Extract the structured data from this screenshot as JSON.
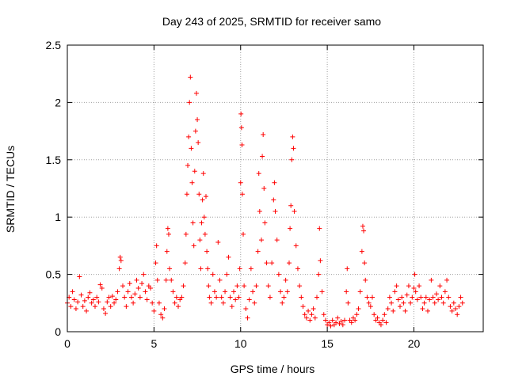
{
  "chart_data": {
    "type": "scatter",
    "title": "Day 243 of 2025, SRMTID for receiver samo",
    "xlabel": "GPS time / hours",
    "ylabel": "SRMTID / TECUs",
    "xlim": [
      0,
      24
    ],
    "ylim": [
      0,
      2.5
    ],
    "xticks": [
      0,
      5,
      10,
      15,
      20
    ],
    "xtick_labels": [
      "0",
      "5",
      "10",
      "15",
      "20"
    ],
    "yticks": [
      0,
      0.5,
      1,
      1.5,
      2,
      2.5
    ],
    "ytick_labels": [
      "0",
      "0.5",
      "1",
      "1.5",
      "2",
      "2.5"
    ],
    "grid": true,
    "marker": "+",
    "marker_color": "#ff0000",
    "series": [
      {
        "name": "samo",
        "points": [
          [
            0.0,
            0.25
          ],
          [
            0.1,
            0.3
          ],
          [
            0.2,
            0.22
          ],
          [
            0.3,
            0.35
          ],
          [
            0.4,
            0.28
          ],
          [
            0.5,
            0.2
          ],
          [
            0.6,
            0.26
          ],
          [
            0.7,
            0.48
          ],
          [
            0.8,
            0.32
          ],
          [
            0.9,
            0.22
          ],
          [
            1.0,
            0.27
          ],
          [
            1.1,
            0.18
          ],
          [
            1.2,
            0.3
          ],
          [
            1.3,
            0.34
          ],
          [
            1.4,
            0.25
          ],
          [
            1.5,
            0.28
          ],
          [
            1.6,
            0.22
          ],
          [
            1.7,
            0.3
          ],
          [
            1.8,
            0.26
          ],
          [
            1.9,
            0.41
          ],
          [
            2.0,
            0.38
          ],
          [
            2.1,
            0.2
          ],
          [
            2.2,
            0.16
          ],
          [
            2.3,
            0.26
          ],
          [
            2.4,
            0.3
          ],
          [
            2.5,
            0.22
          ],
          [
            2.6,
            0.31
          ],
          [
            2.7,
            0.25
          ],
          [
            2.8,
            0.28
          ],
          [
            2.9,
            0.35
          ],
          [
            3.0,
            0.55
          ],
          [
            3.05,
            0.65
          ],
          [
            3.1,
            0.62
          ],
          [
            3.2,
            0.4
          ],
          [
            3.3,
            0.3
          ],
          [
            3.4,
            0.22
          ],
          [
            3.5,
            0.35
          ],
          [
            3.6,
            0.42
          ],
          [
            3.7,
            0.3
          ],
          [
            3.8,
            0.25
          ],
          [
            3.9,
            0.33
          ],
          [
            4.0,
            0.45
          ],
          [
            4.1,
            0.38
          ],
          [
            4.2,
            0.3
          ],
          [
            4.3,
            0.42
          ],
          [
            4.4,
            0.5
          ],
          [
            4.5,
            0.35
          ],
          [
            4.6,
            0.28
          ],
          [
            4.7,
            0.4
          ],
          [
            4.8,
            0.38
          ],
          [
            4.9,
            0.25
          ],
          [
            5.0,
            0.18
          ],
          [
            5.1,
            0.6
          ],
          [
            5.15,
            0.75
          ],
          [
            5.2,
            0.45
          ],
          [
            5.3,
            0.25
          ],
          [
            5.4,
            0.15
          ],
          [
            5.5,
            0.12
          ],
          [
            5.6,
            0.2
          ],
          [
            5.7,
            0.45
          ],
          [
            5.75,
            0.7
          ],
          [
            5.8,
            0.9
          ],
          [
            5.85,
            0.85
          ],
          [
            5.9,
            0.55
          ],
          [
            6.0,
            0.45
          ],
          [
            6.1,
            0.35
          ],
          [
            6.2,
            0.25
          ],
          [
            6.3,
            0.3
          ],
          [
            6.4,
            0.22
          ],
          [
            6.5,
            0.28
          ],
          [
            6.6,
            0.3
          ],
          [
            6.7,
            0.4
          ],
          [
            6.8,
            0.6
          ],
          [
            6.85,
            0.85
          ],
          [
            6.9,
            1.2
          ],
          [
            6.95,
            1.45
          ],
          [
            7.0,
            1.7
          ],
          [
            7.05,
            2.0
          ],
          [
            7.1,
            2.22
          ],
          [
            7.15,
            1.6
          ],
          [
            7.2,
            1.3
          ],
          [
            7.25,
            0.95
          ],
          [
            7.3,
            0.75
          ],
          [
            7.35,
            1.4
          ],
          [
            7.4,
            1.75
          ],
          [
            7.45,
            2.08
          ],
          [
            7.5,
            1.85
          ],
          [
            7.55,
            1.65
          ],
          [
            7.6,
            1.2
          ],
          [
            7.65,
            0.8
          ],
          [
            7.7,
            0.55
          ],
          [
            7.75,
            0.95
          ],
          [
            7.8,
            1.15
          ],
          [
            7.85,
            1.38
          ],
          [
            7.9,
            1.0
          ],
          [
            7.95,
            0.85
          ],
          [
            8.0,
            1.18
          ],
          [
            8.05,
            0.7
          ],
          [
            8.1,
            0.55
          ],
          [
            8.15,
            0.4
          ],
          [
            8.2,
            0.3
          ],
          [
            8.3,
            0.25
          ],
          [
            8.4,
            0.5
          ],
          [
            8.5,
            0.35
          ],
          [
            8.6,
            0.3
          ],
          [
            8.7,
            0.78
          ],
          [
            8.8,
            0.45
          ],
          [
            8.9,
            0.3
          ],
          [
            9.0,
            0.25
          ],
          [
            9.1,
            0.35
          ],
          [
            9.2,
            0.5
          ],
          [
            9.3,
            0.65
          ],
          [
            9.4,
            0.3
          ],
          [
            9.5,
            0.22
          ],
          [
            9.6,
            0.35
          ],
          [
            9.7,
            0.28
          ],
          [
            9.8,
            0.4
          ],
          [
            9.9,
            0.3
          ],
          [
            9.95,
            0.55
          ],
          [
            10.0,
            1.3
          ],
          [
            10.02,
            1.9
          ],
          [
            10.05,
            1.78
          ],
          [
            10.08,
            1.63
          ],
          [
            10.1,
            1.2
          ],
          [
            10.15,
            0.85
          ],
          [
            10.2,
            0.4
          ],
          [
            10.3,
            0.2
          ],
          [
            10.4,
            0.12
          ],
          [
            10.5,
            0.28
          ],
          [
            10.6,
            0.55
          ],
          [
            10.7,
            0.35
          ],
          [
            10.8,
            0.25
          ],
          [
            10.9,
            0.4
          ],
          [
            11.0,
            0.7
          ],
          [
            11.05,
            1.38
          ],
          [
            11.1,
            1.05
          ],
          [
            11.2,
            0.8
          ],
          [
            11.25,
            1.53
          ],
          [
            11.3,
            1.72
          ],
          [
            11.35,
            1.25
          ],
          [
            11.4,
            0.95
          ],
          [
            11.5,
            0.6
          ],
          [
            11.6,
            0.4
          ],
          [
            11.7,
            0.3
          ],
          [
            11.8,
            0.6
          ],
          [
            11.9,
            1.15
          ],
          [
            11.95,
            1.3
          ],
          [
            12.0,
            1.05
          ],
          [
            12.1,
            0.8
          ],
          [
            12.2,
            0.5
          ],
          [
            12.3,
            0.35
          ],
          [
            12.4,
            0.25
          ],
          [
            12.5,
            0.3
          ],
          [
            12.6,
            0.45
          ],
          [
            12.7,
            0.35
          ],
          [
            12.8,
            0.6
          ],
          [
            12.85,
            0.9
          ],
          [
            12.9,
            1.1
          ],
          [
            12.95,
            1.5
          ],
          [
            13.0,
            1.7
          ],
          [
            13.05,
            1.6
          ],
          [
            13.1,
            1.05
          ],
          [
            13.2,
            0.75
          ],
          [
            13.3,
            0.55
          ],
          [
            13.4,
            0.4
          ],
          [
            13.5,
            0.3
          ],
          [
            13.6,
            0.22
          ],
          [
            13.7,
            0.15
          ],
          [
            13.8,
            0.12
          ],
          [
            13.9,
            0.18
          ],
          [
            14.0,
            0.1
          ],
          [
            14.1,
            0.15
          ],
          [
            14.2,
            0.2
          ],
          [
            14.3,
            0.12
          ],
          [
            14.4,
            0.3
          ],
          [
            14.5,
            0.5
          ],
          [
            14.55,
            0.9
          ],
          [
            14.6,
            0.62
          ],
          [
            14.7,
            0.35
          ],
          [
            14.8,
            0.15
          ],
          [
            14.9,
            0.1
          ],
          [
            15.0,
            0.06
          ],
          [
            15.1,
            0.08
          ],
          [
            15.2,
            0.05
          ],
          [
            15.3,
            0.1
          ],
          [
            15.4,
            0.06
          ],
          [
            15.5,
            0.08
          ],
          [
            15.6,
            0.12
          ],
          [
            15.7,
            0.07
          ],
          [
            15.8,
            0.09
          ],
          [
            15.9,
            0.06
          ],
          [
            16.0,
            0.1
          ],
          [
            16.1,
            0.35
          ],
          [
            16.15,
            0.55
          ],
          [
            16.2,
            0.25
          ],
          [
            16.3,
            0.1
          ],
          [
            16.4,
            0.08
          ],
          [
            16.5,
            0.12
          ],
          [
            16.6,
            0.1
          ],
          [
            16.7,
            0.15
          ],
          [
            16.8,
            0.2
          ],
          [
            16.9,
            0.35
          ],
          [
            17.0,
            0.7
          ],
          [
            17.05,
            0.92
          ],
          [
            17.1,
            0.88
          ],
          [
            17.15,
            0.6
          ],
          [
            17.2,
            0.45
          ],
          [
            17.3,
            0.3
          ],
          [
            17.4,
            0.25
          ],
          [
            17.5,
            0.22
          ],
          [
            17.6,
            0.3
          ],
          [
            17.7,
            0.15
          ],
          [
            17.8,
            0.1
          ],
          [
            17.9,
            0.12
          ],
          [
            18.0,
            0.08
          ],
          [
            18.1,
            0.06
          ],
          [
            18.2,
            0.1
          ],
          [
            18.3,
            0.15
          ],
          [
            18.4,
            0.08
          ],
          [
            18.5,
            0.2
          ],
          [
            18.6,
            0.3
          ],
          [
            18.7,
            0.25
          ],
          [
            18.8,
            0.18
          ],
          [
            18.9,
            0.35
          ],
          [
            19.0,
            0.4
          ],
          [
            19.1,
            0.28
          ],
          [
            19.2,
            0.22
          ],
          [
            19.3,
            0.3
          ],
          [
            19.4,
            0.25
          ],
          [
            19.5,
            0.18
          ],
          [
            19.6,
            0.32
          ],
          [
            19.7,
            0.4
          ],
          [
            19.8,
            0.25
          ],
          [
            19.9,
            0.3
          ],
          [
            20.0,
            0.38
          ],
          [
            20.05,
            0.5
          ],
          [
            20.1,
            0.35
          ],
          [
            20.2,
            0.28
          ],
          [
            20.3,
            0.4
          ],
          [
            20.4,
            0.3
          ],
          [
            20.5,
            0.2
          ],
          [
            20.6,
            0.25
          ],
          [
            20.7,
            0.3
          ],
          [
            20.8,
            0.18
          ],
          [
            20.9,
            0.28
          ],
          [
            21.0,
            0.45
          ],
          [
            21.1,
            0.3
          ],
          [
            21.2,
            0.25
          ],
          [
            21.3,
            0.33
          ],
          [
            21.4,
            0.28
          ],
          [
            21.5,
            0.4
          ],
          [
            21.6,
            0.3
          ],
          [
            21.7,
            0.25
          ],
          [
            21.8,
            0.35
          ],
          [
            21.9,
            0.45
          ],
          [
            22.0,
            0.3
          ],
          [
            22.1,
            0.22
          ],
          [
            22.2,
            0.18
          ],
          [
            22.3,
            0.25
          ],
          [
            22.4,
            0.2
          ],
          [
            22.5,
            0.15
          ],
          [
            22.6,
            0.22
          ],
          [
            22.7,
            0.3
          ],
          [
            22.8,
            0.25
          ]
        ]
      }
    ]
  }
}
